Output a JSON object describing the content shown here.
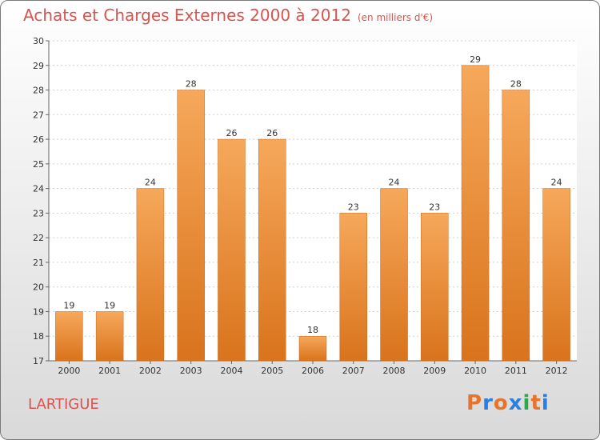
{
  "header": {
    "title": "Achats et Charges Externes 2000 à 2012",
    "unit": "(en milliers d'€)"
  },
  "footer": {
    "place": "LARTIGUE",
    "logo": "Proxiti"
  },
  "colors": {
    "title": "#d9534f",
    "bar_top": "#f6a85a",
    "bar_bottom": "#d9731c",
    "logo_letters": [
      "#e8732a",
      "#2a7de1",
      "#e8732a",
      "#2a7de1",
      "#2aa84a",
      "#e8732a",
      "#2a7de1"
    ]
  },
  "chart_data": {
    "type": "bar",
    "categories": [
      "2000",
      "2001",
      "2002",
      "2003",
      "2004",
      "2005",
      "2006",
      "2007",
      "2008",
      "2009",
      "2010",
      "2011",
      "2012"
    ],
    "values": [
      19,
      19,
      24,
      28,
      26,
      26,
      18,
      23,
      24,
      23,
      29,
      28,
      24
    ],
    "title": "Achats et Charges Externes 2000 à 2012",
    "xlabel": "",
    "ylabel": "",
    "ylim": [
      17,
      30
    ],
    "yticks": [
      17,
      18,
      19,
      20,
      21,
      22,
      23,
      24,
      25,
      26,
      27,
      28,
      29,
      30
    ],
    "grid": true,
    "data_labels": true
  }
}
